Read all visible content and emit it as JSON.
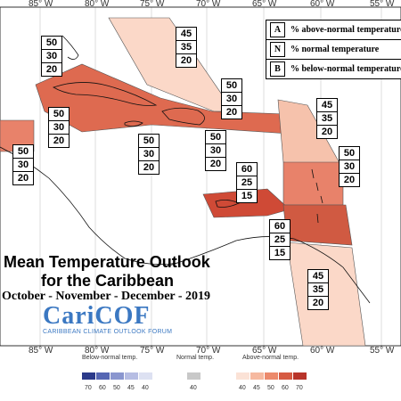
{
  "title_line1": "Mean Temperature Outlook",
  "title_line2": "for the Caribbean",
  "season": "October - November - December - 2019",
  "logo": {
    "name": "CariCOF",
    "tagline": "CARIBBEAN CLIMATE OUTLOOK FORUM"
  },
  "key": [
    {
      "letter": "A",
      "text": "% above-normal temperature"
    },
    {
      "letter": "N",
      "text": "% normal temperature"
    },
    {
      "letter": "B",
      "text": "% below-normal temperature"
    }
  ],
  "longitude_labels_top": [
    "85° W",
    "80° W",
    "75° W",
    "70° W",
    "65° W",
    "60° W",
    "55° W"
  ],
  "longitude_labels_bottom": [
    "85° W",
    "80° W",
    "75° W",
    "70° W",
    "65° W",
    "60° W",
    "55° W"
  ],
  "forecasts": [
    {
      "above": "45",
      "normal": "35",
      "below": "20"
    },
    {
      "above": "50",
      "normal": "30",
      "below": "20"
    },
    {
      "above": "50",
      "normal": "30",
      "below": "20"
    },
    {
      "above": "50",
      "normal": "30",
      "below": "20"
    },
    {
      "above": "45",
      "normal": "35",
      "below": "20"
    },
    {
      "above": "50",
      "normal": "30",
      "below": "20"
    },
    {
      "above": "50",
      "normal": "30",
      "below": "20"
    },
    {
      "above": "50",
      "normal": "30",
      "below": "20"
    },
    {
      "above": "50",
      "normal": "30",
      "below": "20"
    },
    {
      "above": "60",
      "normal": "25",
      "below": "15"
    },
    {
      "above": "60",
      "normal": "25",
      "below": "15"
    },
    {
      "above": "45",
      "normal": "35",
      "below": "20"
    }
  ],
  "legend": {
    "below_label": "Below-normal temp.",
    "normal_label": "Normal temp.",
    "above_label": "Above-normal temp.",
    "below_ticks": [
      "70",
      "60",
      "50",
      "45",
      "40"
    ],
    "normal_ticks": [
      "40"
    ],
    "above_ticks": [
      "40",
      "45",
      "50",
      "60",
      "70"
    ],
    "below_colors": [
      "#2b3a8a",
      "#5566b3",
      "#8a96cf",
      "#b6bde3",
      "#dde1f2"
    ],
    "normal_color": "#c8c8c8",
    "above_colors": [
      "#fbe2d6",
      "#f6b9a0",
      "#ec8a6c",
      "#d65b43",
      "#b8342a"
    ]
  }
}
